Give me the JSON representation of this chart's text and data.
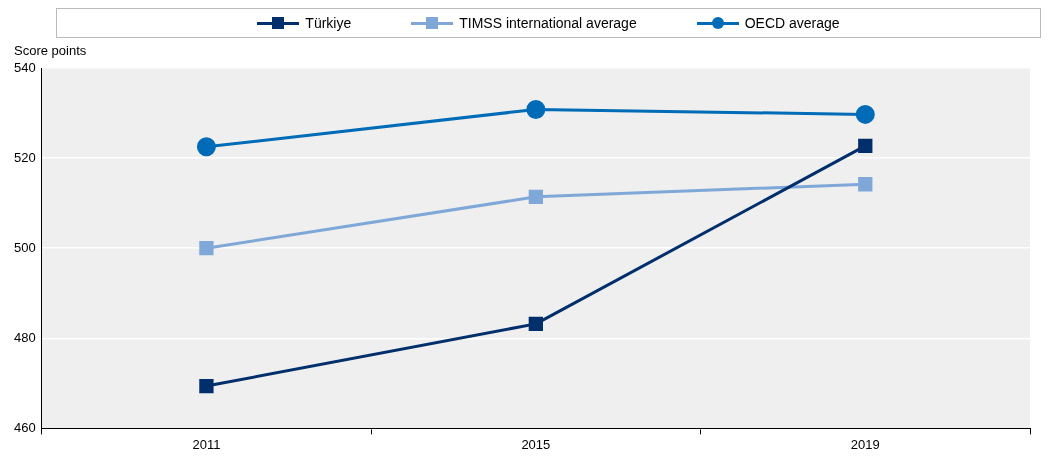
{
  "chart_data": {
    "type": "line",
    "ylabel": "Score points",
    "categories": [
      "2011",
      "2015",
      "2019"
    ],
    "series": [
      {
        "name": "Türkiye",
        "color": "#002f6c",
        "marker": "square",
        "values": [
          469.4,
          483.2,
          522.7
        ]
      },
      {
        "name": "TIMSS international average",
        "color": "#7fa8d9",
        "marker": "square",
        "values": [
          500,
          511.4,
          514.2
        ]
      },
      {
        "name": "OECD average",
        "color": "#006bb6",
        "marker": "circle",
        "values": [
          522.5,
          530.8,
          529.7
        ]
      }
    ],
    "ylim": [
      460,
      540
    ],
    "yticks": [
      460,
      480,
      500,
      520,
      540
    ],
    "grid": "y",
    "legend": "top"
  }
}
